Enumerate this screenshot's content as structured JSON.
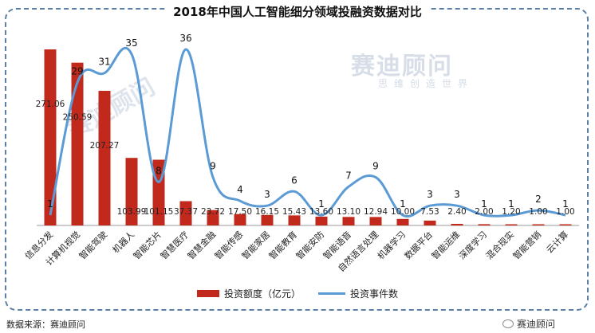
{
  "title": "2018年中国人工智能细分领域投融资数据对比",
  "source": "数据来源：赛迪顾问",
  "watermark": {
    "main": "赛迪顾问",
    "sub": "思维创造世界"
  },
  "brand": "赛迪顾问",
  "colors": {
    "bar": "#c0291c",
    "line": "#5b9bd5",
    "frame": "#5b7fa6"
  },
  "chart_data": {
    "type": "bar",
    "categories": [
      "信息分发",
      "计算机视觉",
      "智能驾驶",
      "机器人",
      "智能芯片",
      "智慧医疗",
      "智慧金融",
      "智能传感",
      "智能家居",
      "智能教育",
      "智能安防",
      "智能语音",
      "自然语言处理",
      "机器学习",
      "数据平台",
      "智能运维",
      "深度学习",
      "混合现实",
      "智能营销",
      "云计算"
    ],
    "series": [
      {
        "name": "投资额度（亿元）",
        "type": "bar",
        "values": [
          271.06,
          250.59,
          207.27,
          103.99,
          101.15,
          37.37,
          23.72,
          17.5,
          16.15,
          15.43,
          13.6,
          13.1,
          12.94,
          10.0,
          7.53,
          2.4,
          2.0,
          1.2,
          1.0,
          1.0
        ],
        "labels": [
          "271.06",
          "250.59",
          "207.27",
          "103.99",
          "101.15",
          "37.37",
          "23.72",
          "17.50",
          "16.15",
          "15.43",
          "13.60",
          "13.10",
          "12.94",
          "10.00",
          "7.53",
          "2.40",
          "2.00",
          "1.20",
          "1.00",
          "1.00"
        ]
      },
      {
        "name": "投资事件数",
        "type": "line",
        "values": [
          1,
          29,
          31,
          35,
          8,
          36,
          9,
          4,
          3,
          6,
          1,
          7,
          9,
          1,
          3,
          3,
          1,
          1,
          2,
          1
        ]
      }
    ],
    "legend_position": "bottom",
    "grid": false
  }
}
